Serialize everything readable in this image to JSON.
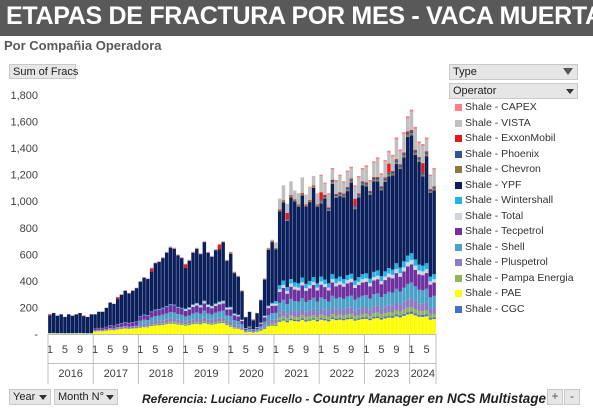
{
  "title": "ETAPAS DE FRACTURA POR MES -  VACA MUERTA",
  "subtitle": "Por Compañia Operadora",
  "pivot": {
    "value_field": "Sum of Fracs",
    "type_field": "Type",
    "operator_field": "Operator",
    "year_field": "Year",
    "month_field": "Month N°"
  },
  "footer": {
    "ref_label": "Referencia:  Luciano Fucello - ",
    "ref_role": "Country Manager en NCS Multistage"
  },
  "zoom": {
    "plus": "+",
    "minus": "-"
  },
  "chart_data": {
    "type": "bar",
    "stacked": true,
    "ylim": [
      0,
      1800
    ],
    "y_ticks": [
      "-",
      "200",
      "400",
      "600",
      "800",
      "1,000",
      "1,200",
      "1,400",
      "1,600",
      "1,800"
    ],
    "grid": false,
    "legend_position": "right",
    "month_tick_labels": [
      "1",
      "5",
      "9"
    ],
    "years": [
      "2016",
      "2017",
      "2018",
      "2019",
      "2020",
      "2021",
      "2022",
      "2023",
      "2024"
    ],
    "months_last_year": 7,
    "series": [
      {
        "name": "Shale - CAPEX",
        "color": "#ff7c80"
      },
      {
        "name": "Shale - VISTA",
        "color": "#bfbfbf"
      },
      {
        "name": "Shale - ExxonMobil",
        "color": "#e31a1c"
      },
      {
        "name": "Shale - Phoenix",
        "color": "#2f5597"
      },
      {
        "name": "Shale - Chevron",
        "color": "#8c7a3e"
      },
      {
        "name": "Shale - YPF",
        "color": "#0b1f5c"
      },
      {
        "name": "Shale - Wintershall",
        "color": "#1fb4e6"
      },
      {
        "name": "Shale - Total",
        "color": "#d0d5db"
      },
      {
        "name": "Shale - Tecpetrol",
        "color": "#7030a0"
      },
      {
        "name": "Shale - Shell",
        "color": "#4aa3c7"
      },
      {
        "name": "Shale - Pluspetrol",
        "color": "#8e7cc3"
      },
      {
        "name": "Shale - Pampa Energia",
        "color": "#92b55c"
      },
      {
        "name": "Shale - PAE",
        "color": "#ffff00"
      },
      {
        "name": "Shale - CGC",
        "color": "#4472c4"
      }
    ],
    "monthly_totals": [
      150,
      160,
      140,
      150,
      130,
      150,
      140,
      150,
      160,
      140,
      130,
      150,
      150,
      170,
      170,
      200,
      240,
      230,
      280,
      300,
      330,
      310,
      330,
      350,
      400,
      430,
      420,
      500,
      540,
      550,
      580,
      620,
      660,
      650,
      600,
      580,
      530,
      560,
      620,
      650,
      610,
      700,
      620,
      590,
      640,
      680,
      700,
      560,
      620,
      470,
      440,
      330,
      130,
      170,
      110,
      160,
      260,
      420,
      650,
      710,
      690,
      1020,
      1120,
      980,
      1150,
      1080,
      1060,
      1180,
      1050,
      1110,
      1190,
      1060,
      1200,
      1140,
      1060,
      1250,
      1160,
      1200,
      1150,
      1230,
      1260,
      1120,
      1190,
      1250,
      1270,
      1160,
      1300,
      1330,
      1210,
      1310,
      1380,
      1350,
      1480,
      1390,
      1520,
      1640,
      1690,
      1560,
      1450,
      1430,
      1480,
      1200,
      1250
    ]
  }
}
